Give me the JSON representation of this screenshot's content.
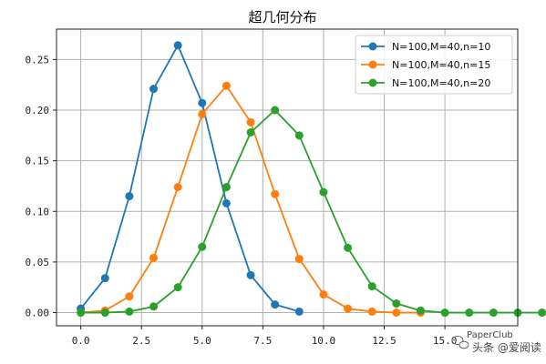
{
  "chart_data": {
    "type": "line",
    "title": "超几何分布",
    "xlim": [
      -1.0,
      18.0
    ],
    "ylim": [
      -0.013,
      0.28
    ],
    "xticks": [
      0.0,
      2.5,
      5.0,
      7.5,
      10.0,
      12.5,
      15.0
    ],
    "xtick_labels": [
      "0.0",
      "2.5",
      "5.0",
      "7.5",
      "10.0",
      "12.5",
      "15.0"
    ],
    "yticks": [
      0.0,
      0.05,
      0.1,
      0.15,
      0.2,
      0.25
    ],
    "ytick_labels": [
      "0.00",
      "0.05",
      "0.10",
      "0.15",
      "0.20",
      "0.25"
    ],
    "grid": true,
    "legend_position": "top-right",
    "series": [
      {
        "name": "N=100,M=40,n=10",
        "color": "#1f77b4",
        "x": [
          0,
          1,
          2,
          3,
          4,
          5,
          6,
          7,
          8,
          9
        ],
        "values": [
          0.004,
          0.034,
          0.115,
          0.221,
          0.264,
          0.207,
          0.108,
          0.037,
          0.008,
          0.001
        ]
      },
      {
        "name": "N=100,M=40,n=15",
        "color": "#ff7f0e",
        "x": [
          0,
          1,
          2,
          3,
          4,
          5,
          6,
          7,
          8,
          9,
          10,
          11,
          12,
          13,
          14
        ],
        "values": [
          0.0,
          0.002,
          0.016,
          0.054,
          0.124,
          0.196,
          0.224,
          0.188,
          0.117,
          0.053,
          0.018,
          0.004,
          0.001,
          0.0,
          0.0
        ]
      },
      {
        "name": "N=100,M=40,n=20",
        "color": "#2ca02c",
        "x": [
          0,
          1,
          2,
          3,
          4,
          5,
          6,
          7,
          8,
          9,
          10,
          11,
          12,
          13,
          14,
          15,
          16,
          17,
          18,
          19,
          20
        ],
        "values": [
          0.0,
          0.0,
          0.001,
          0.006,
          0.025,
          0.065,
          0.124,
          0.178,
          0.2,
          0.175,
          0.119,
          0.064,
          0.026,
          0.009,
          0.002,
          0.0,
          0.0,
          0.0,
          0.0,
          0.0,
          0.0
        ]
      }
    ]
  },
  "watermark": {
    "line1": "PaperClub",
    "line2": "头条 @爱阅读",
    "icon": "wechat-bubble-icon"
  }
}
